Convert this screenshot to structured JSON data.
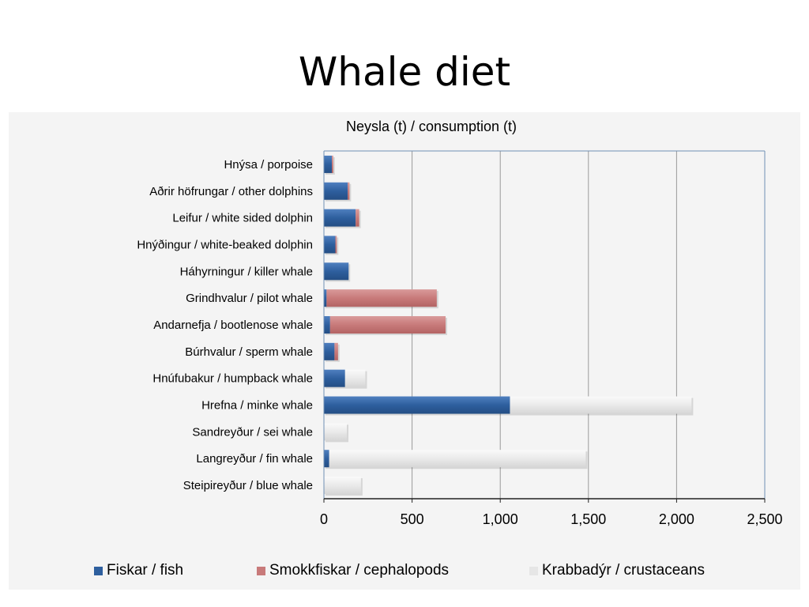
{
  "slide": {
    "title": "Whale diet"
  },
  "chart_data": {
    "type": "bar",
    "orientation": "horizontal",
    "stacked": true,
    "title": "Neysla (t) / consumption (t)",
    "xlabel": "",
    "ylabel": "",
    "xlim": [
      0,
      2500
    ],
    "xticks": [
      0,
      500,
      1000,
      1500,
      2000,
      2500
    ],
    "xtick_labels": [
      "0",
      "500",
      "1,000",
      "1,500",
      "2,000",
      "2,500"
    ],
    "grid": true,
    "legend_position": "bottom",
    "categories": [
      "Hnýsa / porpoise",
      "Aðrir höfrungar / other dolphins",
      "Leifur / white sided dolphin",
      "Hnýðingur / white-beaked dolphin",
      "Háhyrningur / killer whale",
      "Grindhvalur / pilot whale",
      "Andarnefja / bootlenose whale",
      "Búrhvalur / sperm whale",
      "Hnúfubakur / humpback whale",
      "Hrefna / minke whale",
      "Sandreyður / sei whale",
      "Langreyður / fin whale",
      "Steipireyður / blue whale"
    ],
    "series": [
      {
        "name": "Fiskar / fish",
        "color": "#2e5f9e",
        "values": [
          45,
          135,
          180,
          65,
          140,
          15,
          35,
          60,
          120,
          1055,
          0,
          30,
          0
        ]
      },
      {
        "name": "Smokkfiskar / cephalopods",
        "color": "#c87a7a",
        "values": [
          8,
          10,
          20,
          8,
          0,
          625,
          655,
          20,
          0,
          0,
          0,
          0,
          0
        ]
      },
      {
        "name": "Krabbadýr / crustaceans",
        "color": "#e6e6e6",
        "values": [
          0,
          0,
          0,
          0,
          0,
          0,
          0,
          0,
          115,
          1030,
          130,
          1455,
          210
        ]
      }
    ]
  }
}
